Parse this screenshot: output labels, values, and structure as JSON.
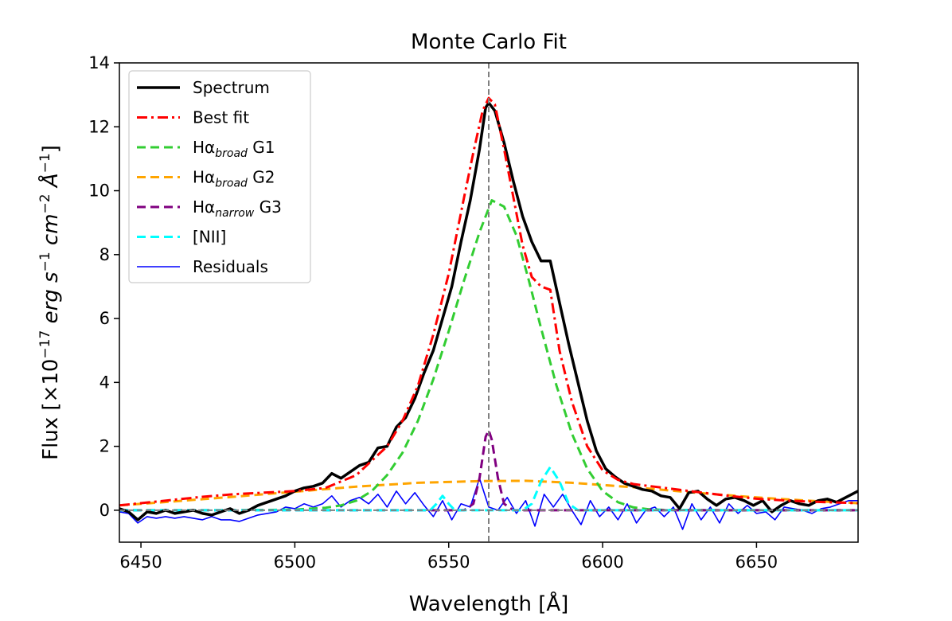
{
  "chart_data": {
    "type": "line",
    "title": "Monte Carlo Fit",
    "xlabel": "Wavelength [Å]",
    "ylabel_parts": {
      "prefix": "Flux [×10",
      "exp1": "−17",
      "mid": " erg s",
      "exp2": "−1",
      "mid2": " cm",
      "exp3": "−2",
      "mid3": " Å",
      "exp4": "−1",
      "suffix": "]"
    },
    "xlim": [
      6443,
      6683
    ],
    "ylim": [
      -1,
      14
    ],
    "xticks": [
      6450,
      6500,
      6550,
      6600,
      6650
    ],
    "yticks": [
      0,
      2,
      4,
      6,
      8,
      10,
      12,
      14
    ],
    "vline_x": 6563,
    "hline_y": 0,
    "legend": {
      "position": "top-left",
      "entries": [
        {
          "key": "spectrum",
          "text": "Spectrum"
        },
        {
          "key": "fit",
          "text": "Best fit"
        },
        {
          "key": "g1",
          "text": "Hα",
          "sub": "broad",
          "tail": " G1"
        },
        {
          "key": "g2",
          "text": "Hα",
          "sub": "broad",
          "tail": " G2"
        },
        {
          "key": "g3",
          "text": "Hα",
          "sub": "narrow",
          "tail": " G3"
        },
        {
          "key": "nii",
          "text": "[NII]"
        },
        {
          "key": "resid",
          "text": "Residuals"
        }
      ]
    },
    "colors": {
      "spectrum": "#000000",
      "fit": "#ff0000",
      "g1": "#32cd32",
      "g2": "#ffa500",
      "g3": "#800080",
      "nii": "#00ffff",
      "resid": "#0000ff",
      "ref": "#808080"
    },
    "series": [
      {
        "name": "Spectrum",
        "key": "spectrum",
        "x": [
          6443,
          6446,
          6449,
          6452,
          6455,
          6458,
          6461,
          6464,
          6467,
          6470,
          6473,
          6476,
          6479,
          6482,
          6485,
          6488,
          6491,
          6494,
          6497,
          6500,
          6503,
          6506,
          6509,
          6512,
          6515,
          6518,
          6521,
          6524,
          6527,
          6530,
          6533,
          6536,
          6539,
          6542,
          6545,
          6548,
          6551,
          6554,
          6557,
          6560,
          6562,
          6563,
          6565,
          6568,
          6571,
          6574,
          6577,
          6580,
          6583,
          6586,
          6589,
          6592,
          6595,
          6598,
          6601,
          6604,
          6607,
          6610,
          6613,
          6616,
          6619,
          6622,
          6625,
          6628,
          6631,
          6634,
          6637,
          6640,
          6643,
          6646,
          6649,
          6652,
          6655,
          6658,
          6661,
          6664,
          6667,
          6670,
          6673,
          6676,
          6679,
          6683
        ],
        "values": [
          0.05,
          -0.05,
          -0.3,
          -0.05,
          -0.1,
          0.0,
          -0.1,
          -0.05,
          0.0,
          -0.1,
          -0.15,
          -0.05,
          0.05,
          -0.1,
          0.0,
          0.15,
          0.25,
          0.35,
          0.45,
          0.6,
          0.7,
          0.75,
          0.85,
          1.15,
          1.0,
          1.2,
          1.4,
          1.5,
          1.95,
          2.0,
          2.6,
          2.9,
          3.5,
          4.3,
          5.0,
          6.0,
          7.0,
          8.4,
          9.7,
          11.3,
          12.6,
          12.75,
          12.5,
          11.5,
          10.3,
          9.2,
          8.4,
          7.8,
          7.8,
          6.5,
          5.2,
          4.0,
          2.8,
          1.85,
          1.3,
          1.05,
          0.85,
          0.75,
          0.65,
          0.6,
          0.45,
          0.4,
          0.05,
          0.55,
          0.6,
          0.35,
          0.15,
          0.35,
          0.4,
          0.3,
          0.15,
          0.3,
          -0.05,
          0.15,
          0.3,
          0.2,
          0.15,
          0.3,
          0.35,
          0.25,
          0.4,
          0.6
        ]
      },
      {
        "name": "Best fit",
        "key": "fit",
        "x": [
          6443,
          6450,
          6460,
          6470,
          6480,
          6490,
          6500,
          6510,
          6520,
          6530,
          6535,
          6540,
          6545,
          6550,
          6555,
          6558,
          6561,
          6563,
          6565,
          6568,
          6571,
          6574,
          6577,
          6580,
          6583,
          6586,
          6590,
          6595,
          6600,
          6605,
          6610,
          6620,
          6630,
          6640,
          6650,
          6660,
          6670,
          6683
        ],
        "values": [
          0.15,
          0.22,
          0.32,
          0.42,
          0.5,
          0.55,
          0.6,
          0.7,
          1.1,
          2.0,
          2.8,
          3.9,
          5.5,
          7.4,
          9.8,
          11.2,
          12.5,
          12.9,
          12.7,
          11.3,
          9.8,
          8.3,
          7.3,
          7.0,
          6.9,
          5.0,
          3.4,
          2.0,
          1.25,
          0.95,
          0.82,
          0.7,
          0.58,
          0.46,
          0.36,
          0.3,
          0.26,
          0.22
        ]
      },
      {
        "name": "Hα broad G1",
        "key": "g1",
        "x": [
          6443,
          6480,
          6500,
          6510,
          6515,
          6520,
          6525,
          6530,
          6535,
          6540,
          6545,
          6550,
          6555,
          6560,
          6564,
          6568,
          6572,
          6576,
          6580,
          6585,
          6590,
          6595,
          6600,
          6605,
          6610,
          6615,
          6620,
          6640,
          6683
        ],
        "values": [
          0,
          0,
          0.02,
          0.08,
          0.15,
          0.3,
          0.6,
          1.1,
          1.8,
          2.8,
          4.1,
          5.6,
          7.2,
          8.7,
          9.7,
          9.5,
          8.6,
          7.2,
          5.7,
          3.9,
          2.4,
          1.3,
          0.6,
          0.25,
          0.09,
          0.03,
          0.01,
          0,
          0
        ]
      },
      {
        "name": "Hα broad G2",
        "key": "g2",
        "x": [
          6443,
          6460,
          6480,
          6500,
          6520,
          6540,
          6560,
          6575,
          6590,
          6610,
          6630,
          6650,
          6670,
          6683
        ],
        "values": [
          0.15,
          0.27,
          0.42,
          0.58,
          0.74,
          0.86,
          0.91,
          0.92,
          0.86,
          0.72,
          0.55,
          0.4,
          0.28,
          0.22
        ]
      },
      {
        "name": "Hα narrow G3",
        "key": "g3",
        "x": [
          6443,
          6555,
          6558,
          6560,
          6562,
          6563,
          6564,
          6566,
          6568,
          6571,
          6683
        ],
        "values": [
          0,
          0,
          0.2,
          1.0,
          2.3,
          2.5,
          2.2,
          1.0,
          0.2,
          0,
          0
        ]
      },
      {
        "name": "[NII]",
        "key": "nii",
        "x": [
          6443,
          6544,
          6546,
          6548,
          6550,
          6552,
          6574,
          6577,
          6580,
          6583,
          6586,
          6589,
          6592,
          6683
        ],
        "values": [
          0,
          0,
          0.2,
          0.45,
          0.2,
          0,
          0,
          0.2,
          0.9,
          1.35,
          0.9,
          0.2,
          0,
          0
        ]
      },
      {
        "name": "Residuals",
        "key": "resid",
        "x": [
          6443,
          6446,
          6449,
          6452,
          6455,
          6458,
          6461,
          6464,
          6467,
          6470,
          6473,
          6476,
          6479,
          6482,
          6485,
          6488,
          6491,
          6494,
          6497,
          6500,
          6503,
          6506,
          6509,
          6512,
          6515,
          6518,
          6521,
          6524,
          6527,
          6530,
          6533,
          6536,
          6539,
          6542,
          6545,
          6548,
          6551,
          6554,
          6557,
          6560,
          6563,
          6566,
          6569,
          6572,
          6575,
          6578,
          6581,
          6584,
          6587,
          6590,
          6593,
          6596,
          6599,
          6602,
          6605,
          6608,
          6611,
          6614,
          6617,
          6620,
          6623,
          6626,
          6629,
          6632,
          6635,
          6638,
          6641,
          6644,
          6647,
          6650,
          6653,
          6656,
          6659,
          6662,
          6665,
          6668,
          6671,
          6674,
          6677,
          6680,
          6683
        ],
        "values": [
          -0.05,
          -0.1,
          -0.4,
          -0.2,
          -0.25,
          -0.2,
          -0.25,
          -0.2,
          -0.25,
          -0.3,
          -0.2,
          -0.3,
          -0.3,
          -0.35,
          -0.25,
          -0.15,
          -0.1,
          -0.05,
          0.1,
          0.05,
          0.2,
          0.1,
          0.2,
          0.45,
          0.1,
          0.3,
          0.4,
          0.2,
          0.5,
          0.1,
          0.6,
          0.2,
          0.55,
          0.15,
          -0.2,
          0.3,
          -0.3,
          0.2,
          0.1,
          1.0,
          0.1,
          0.0,
          0.4,
          -0.1,
          0.3,
          -0.5,
          0.5,
          0.1,
          0.5,
          0.0,
          -0.45,
          0.3,
          -0.2,
          0.1,
          -0.3,
          0.2,
          -0.4,
          0.0,
          0.1,
          -0.2,
          0.1,
          -0.6,
          0.2,
          -0.3,
          0.1,
          -0.4,
          0.2,
          -0.1,
          0.15,
          -0.1,
          -0.05,
          -0.3,
          0.1,
          0.05,
          0.0,
          -0.1,
          0.05,
          0.1,
          0.2,
          0.3,
          0.3
        ]
      }
    ]
  }
}
